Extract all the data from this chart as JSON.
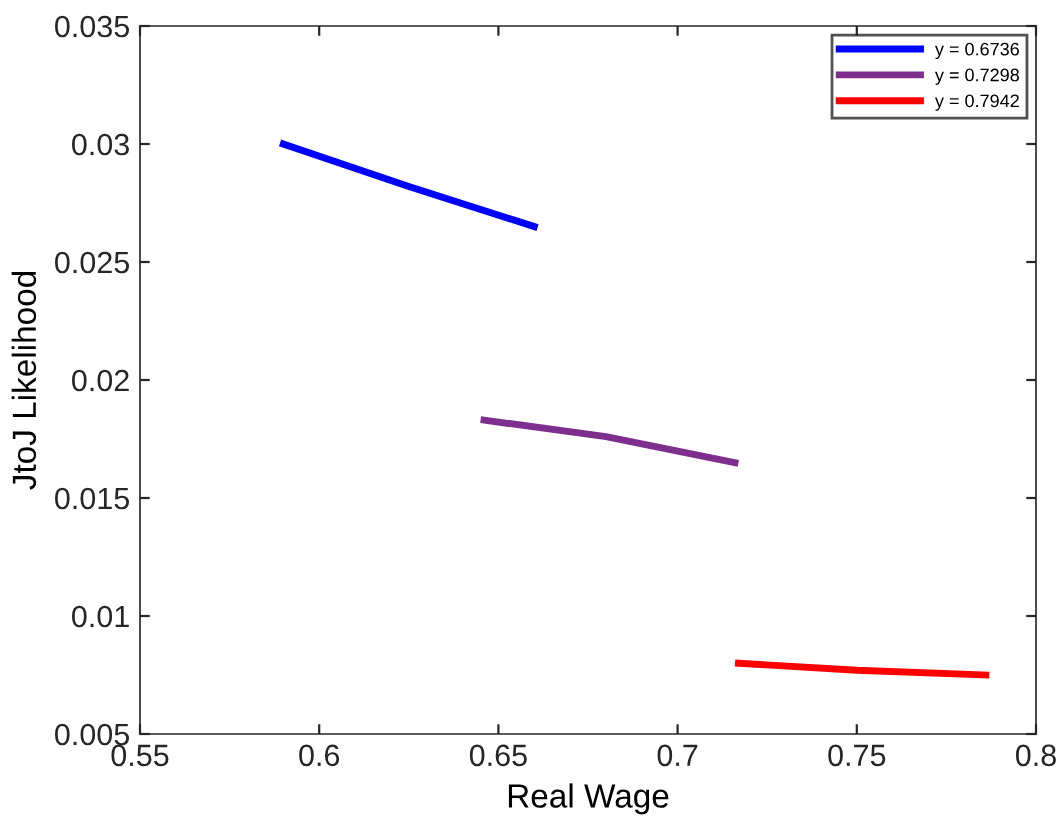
{
  "chart_data": {
    "type": "line",
    "xlabel": "Real Wage",
    "ylabel": "JtoJ Likelihood",
    "xlim": [
      0.55,
      0.8
    ],
    "xticks": [
      0.55,
      0.6,
      0.65,
      0.7,
      0.75,
      0.8
    ],
    "ylim": [
      0.005,
      0.035
    ],
    "yticks": [
      0.005,
      0.01,
      0.015,
      0.02,
      0.025,
      0.03,
      0.035
    ],
    "grid": false,
    "legend": "top right",
    "marker": "none",
    "line_style": "solid",
    "series": [
      {
        "name": "y = 0.6736",
        "color": "#0000ff",
        "x": [
          0.59,
          0.625,
          0.66
        ],
        "values": [
          0.03,
          0.0282,
          0.0265
        ]
      },
      {
        "name": "y = 0.7298",
        "color": "#7e2f8e",
        "x": [
          0.646,
          0.68,
          0.716
        ],
        "values": [
          0.0183,
          0.0176,
          0.0165
        ]
      },
      {
        "name": "y = 0.7942",
        "color": "#ff0000",
        "x": [
          0.717,
          0.75,
          0.786
        ],
        "values": [
          0.008,
          0.0077,
          0.0075
        ]
      }
    ]
  }
}
